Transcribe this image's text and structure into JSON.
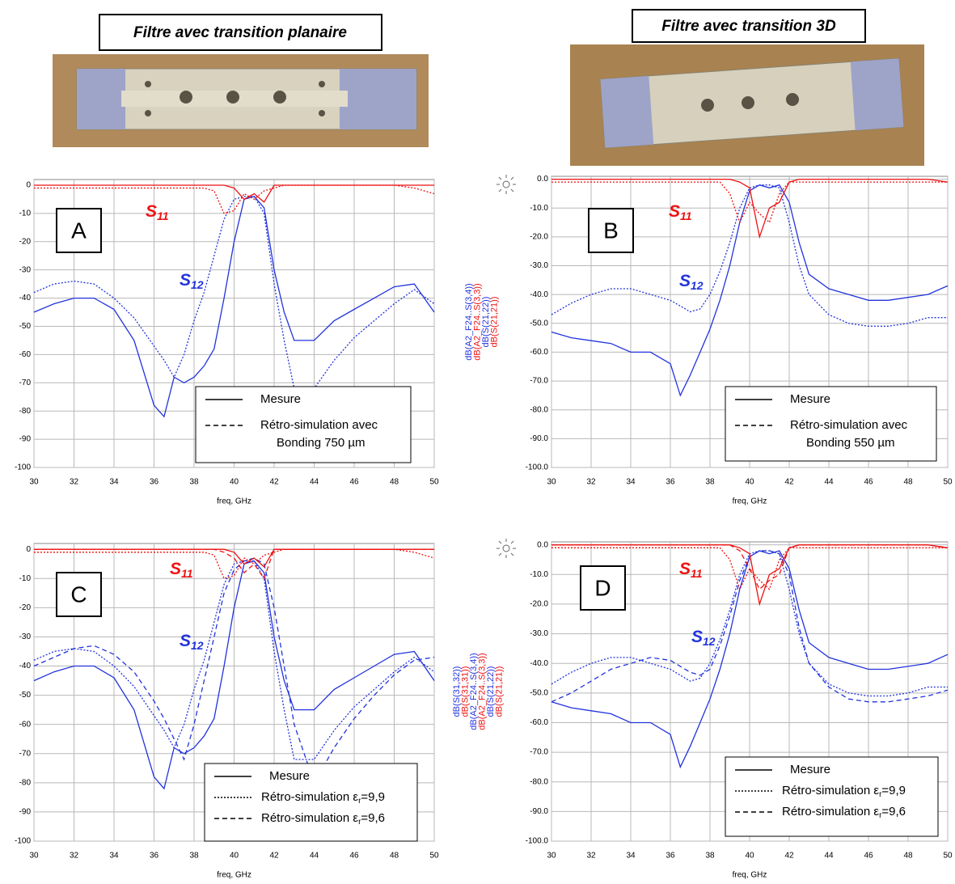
{
  "photos": [
    {
      "caption": "Filtre avec transition planaire"
    },
    {
      "caption": "Filtre avec transition 3D"
    }
  ],
  "chart_data": [
    {
      "type": "line",
      "panel_label": "A",
      "x_label": "freq, GHz",
      "x": [
        30,
        31,
        32,
        33,
        34,
        35,
        36,
        36.5,
        37,
        37.5,
        38,
        38.5,
        39,
        39.5,
        40,
        40.5,
        41,
        41.5,
        42,
        42.5,
        43,
        44,
        45,
        46,
        47,
        48,
        49,
        50
      ],
      "xlim": [
        30,
        50
      ],
      "xticks": [
        30,
        32,
        34,
        36,
        38,
        40,
        42,
        44,
        46,
        48,
        50
      ],
      "ylim": [
        -100,
        2
      ],
      "yticks": [
        0,
        -10,
        -20,
        -30,
        -40,
        -50,
        -60,
        -70,
        -80,
        -90,
        -100
      ],
      "grid": true,
      "annotations": [
        {
          "main": "S",
          "sub": "11",
          "color": "#ee1111"
        },
        {
          "main": "S",
          "sub": "12",
          "color": "#2233dd"
        }
      ],
      "series": [
        {
          "color": "#2233dd",
          "dash": "solid",
          "values": [
            -45,
            -42,
            -40,
            -40,
            -44,
            -55,
            -78,
            -82,
            -68,
            -70,
            -68,
            -64,
            -58,
            -40,
            -20,
            -5,
            -4,
            -8,
            -30,
            -45,
            -55,
            -55,
            -48,
            -44,
            -40,
            -36,
            -35,
            -45
          ]
        },
        {
          "color": "#2233dd",
          "dash": "dotted",
          "values": [
            -38,
            -35,
            -34,
            -35,
            -40,
            -47,
            -57,
            -62,
            -68,
            -60,
            -48,
            -38,
            -25,
            -12,
            -5,
            -4,
            -4,
            -10,
            -35,
            -55,
            -72,
            -72,
            -62,
            -54,
            -48,
            -42,
            -37,
            -42
          ]
        },
        {
          "color": "#ee1111",
          "dash": "solid",
          "values": [
            0,
            0,
            0,
            0,
            0,
            0,
            0,
            0,
            0,
            0,
            0,
            0,
            0,
            0,
            -1,
            -5,
            -3,
            -6,
            0,
            0,
            0,
            0,
            0,
            0,
            0,
            0,
            0,
            0
          ]
        },
        {
          "color": "#ee1111",
          "dash": "dotted",
          "values": [
            -1,
            -1,
            -1,
            -1,
            -1,
            -1,
            -1,
            -1,
            -1,
            -1,
            -1,
            -1,
            -2,
            -10,
            -9,
            -3,
            -5,
            -2,
            -1,
            0,
            0,
            0,
            0,
            0,
            0,
            0,
            -1,
            -3
          ]
        }
      ],
      "legend": [
        {
          "dash": "solid",
          "lines": [
            "Mesure"
          ]
        },
        {
          "dash": "dashed",
          "lines": [
            "Rétro-simulation avec",
            "Bonding 750 µm"
          ]
        }
      ]
    },
    {
      "type": "line",
      "panel_label": "B",
      "x_label": "freq, GHz",
      "x": [
        30,
        31,
        32,
        33,
        34,
        35,
        36,
        36.5,
        37,
        37.5,
        38,
        38.5,
        39,
        39.5,
        40,
        40.5,
        41,
        41.5,
        42,
        42.5,
        43,
        44,
        45,
        46,
        47,
        48,
        49,
        50
      ],
      "xlim": [
        30,
        50
      ],
      "xticks": [
        30,
        32,
        34,
        36,
        38,
        40,
        42,
        44,
        46,
        48,
        50
      ],
      "ylim": [
        -100,
        1
      ],
      "yticks": [
        {
          "value": 0,
          "label": "0.0"
        },
        {
          "value": -10,
          "label": "-10.0"
        },
        {
          "value": -20,
          "label": "-20.0"
        },
        {
          "value": -30,
          "label": "-30.0"
        },
        {
          "value": -40,
          "label": "-40.0"
        },
        {
          "value": -50,
          "label": "-50.0"
        },
        {
          "value": -60,
          "label": "-60.0"
        },
        {
          "value": -70,
          "label": "-70.0"
        },
        {
          "value": -80,
          "label": "-80.0"
        },
        {
          "value": -90,
          "label": "-90.0"
        },
        {
          "value": -100,
          "label": "-100.0"
        }
      ],
      "grid": true,
      "y_labels": [
        {
          "text": "dB(A2_F24..S(3,4))",
          "color": "#2233dd"
        },
        {
          "text": "dB(A2_F24..S(3,3))",
          "color": "#ee1111"
        },
        {
          "text": "dB(S(21,22))",
          "color": "#2233dd"
        },
        {
          "text": "dB(S(21,21))",
          "color": "#ee1111"
        }
      ],
      "annotations": [
        {
          "main": "S",
          "sub": "11",
          "color": "#ee1111"
        },
        {
          "main": "S",
          "sub": "12",
          "color": "#2233dd"
        }
      ],
      "series": [
        {
          "color": "#2233dd",
          "dash": "solid",
          "values": [
            -53,
            -55,
            -56,
            -57,
            -60,
            -60,
            -64,
            -75,
            -68,
            -60,
            -52,
            -42,
            -30,
            -15,
            -4,
            -2,
            -3,
            -2,
            -8,
            -22,
            -33,
            -38,
            -40,
            -42,
            -42,
            -41,
            -40,
            -37
          ]
        },
        {
          "color": "#2233dd",
          "dash": "dotted",
          "values": [
            -47,
            -43,
            -40,
            -38,
            -38,
            -40,
            -42,
            -44,
            -46,
            -45,
            -40,
            -32,
            -22,
            -10,
            -3,
            -2,
            -2,
            -3,
            -15,
            -30,
            -40,
            -47,
            -50,
            -51,
            -51,
            -50,
            -48,
            -48
          ]
        },
        {
          "color": "#ee1111",
          "dash": "solid",
          "values": [
            0,
            0,
            0,
            0,
            0,
            0,
            0,
            0,
            0,
            0,
            0,
            0,
            0,
            -1,
            -3,
            -20,
            -10,
            -8,
            -1,
            0,
            0,
            0,
            0,
            0,
            0,
            0,
            0,
            -1
          ]
        },
        {
          "color": "#ee1111",
          "dash": "dotted",
          "values": [
            -1,
            -1,
            -1,
            -1,
            -1,
            -1,
            -1,
            -1,
            -1,
            -1,
            -1,
            -1,
            -5,
            -15,
            -8,
            -12,
            -15,
            -5,
            -1,
            -1,
            -1,
            -1,
            -1,
            -1,
            -1,
            -1,
            -1,
            -1
          ]
        }
      ],
      "legend": [
        {
          "dash": "solid",
          "lines": [
            "Mesure"
          ]
        },
        {
          "dash": "dashed",
          "lines": [
            "Rétro-simulation avec",
            "Bonding 550 µm"
          ]
        }
      ]
    },
    {
      "type": "line",
      "panel_label": "C",
      "x_label": "freq, GHz",
      "x": [
        30,
        31,
        32,
        33,
        34,
        35,
        36,
        36.5,
        37,
        37.5,
        38,
        38.5,
        39,
        39.5,
        40,
        40.5,
        41,
        41.5,
        42,
        42.5,
        43,
        44,
        45,
        46,
        47,
        48,
        49,
        50
      ],
      "xlim": [
        30,
        50
      ],
      "xticks": [
        30,
        32,
        34,
        36,
        38,
        40,
        42,
        44,
        46,
        48,
        50
      ],
      "ylim": [
        -100,
        2
      ],
      "yticks": [
        0,
        -10,
        -20,
        -30,
        -40,
        -50,
        -60,
        -70,
        -80,
        -90,
        -100
      ],
      "grid": true,
      "annotations": [
        {
          "main": "S",
          "sub": "11",
          "color": "#ee1111"
        },
        {
          "main": "S",
          "sub": "12",
          "color": "#2233dd"
        }
      ],
      "series": [
        {
          "color": "#2233dd",
          "dash": "solid",
          "values": [
            -45,
            -42,
            -40,
            -40,
            -44,
            -55,
            -78,
            -82,
            -68,
            -70,
            -68,
            -64,
            -58,
            -40,
            -20,
            -5,
            -4,
            -8,
            -30,
            -45,
            -55,
            -55,
            -48,
            -44,
            -40,
            -36,
            -35,
            -45
          ]
        },
        {
          "color": "#2233dd",
          "dash": "dotted",
          "values": [
            -38,
            -35,
            -34,
            -35,
            -40,
            -47,
            -57,
            -62,
            -68,
            -60,
            -48,
            -38,
            -25,
            -12,
            -5,
            -4,
            -4,
            -10,
            -35,
            -55,
            -72,
            -72,
            -62,
            -54,
            -48,
            -42,
            -37,
            -42
          ]
        },
        {
          "color": "#2233dd",
          "dash": "dashed",
          "values": [
            -40,
            -37,
            -34,
            -33,
            -36,
            -42,
            -52,
            -58,
            -65,
            -72,
            -60,
            -45,
            -30,
            -15,
            -7,
            -4,
            -3,
            -5,
            -20,
            -40,
            -60,
            -80,
            -68,
            -58,
            -50,
            -43,
            -38,
            -37
          ]
        },
        {
          "color": "#ee1111",
          "dash": "solid",
          "values": [
            0,
            0,
            0,
            0,
            0,
            0,
            0,
            0,
            0,
            0,
            0,
            0,
            0,
            0,
            -1,
            -5,
            -3,
            -6,
            0,
            0,
            0,
            0,
            0,
            0,
            0,
            0,
            0,
            0
          ]
        },
        {
          "color": "#ee1111",
          "dash": "dotted",
          "values": [
            -1,
            -1,
            -1,
            -1,
            -1,
            -1,
            -1,
            -1,
            -1,
            -1,
            -1,
            -1,
            -2,
            -10,
            -9,
            -3,
            -5,
            -2,
            -1,
            0,
            0,
            0,
            0,
            0,
            0,
            0,
            -1,
            -3
          ]
        },
        {
          "color": "#ee1111",
          "dash": "dashed",
          "values": [
            0,
            0,
            0,
            0,
            0,
            0,
            0,
            0,
            0,
            0,
            0,
            0,
            0,
            -1,
            -3,
            -8,
            -5,
            -10,
            0,
            0,
            0,
            0,
            0,
            0,
            0,
            0,
            0,
            0
          ]
        }
      ],
      "legend": [
        {
          "dash": "solid",
          "lines": [
            "Mesure"
          ]
        },
        {
          "dash": "dotted",
          "text": "Rétro-simulation ε",
          "sub": "r",
          "after": "=9,9"
        },
        {
          "dash": "dashed",
          "text": "Rétro-simulation ε",
          "sub": "r",
          "after": "=9,6"
        }
      ]
    },
    {
      "type": "line",
      "panel_label": "D",
      "x_label": "freq, GHz",
      "x": [
        30,
        31,
        32,
        33,
        34,
        35,
        36,
        36.5,
        37,
        37.5,
        38,
        38.5,
        39,
        39.5,
        40,
        40.5,
        41,
        41.5,
        42,
        42.5,
        43,
        44,
        45,
        46,
        47,
        48,
        49,
        50
      ],
      "xlim": [
        30,
        50
      ],
      "xticks": [
        30,
        32,
        34,
        36,
        38,
        40,
        42,
        44,
        46,
        48,
        50
      ],
      "ylim": [
        -100,
        1
      ],
      "yticks": [
        {
          "value": 0,
          "label": "0.0"
        },
        {
          "value": -10,
          "label": "-10.0"
        },
        {
          "value": -20,
          "label": "-20.0"
        },
        {
          "value": -30,
          "label": "-30.0"
        },
        {
          "value": -40,
          "label": "-40.0"
        },
        {
          "value": -50,
          "label": "-50.0"
        },
        {
          "value": -60,
          "label": "-60.0"
        },
        {
          "value": -70,
          "label": "-70.0"
        },
        {
          "value": -80,
          "label": "-80.0"
        },
        {
          "value": -90,
          "label": "-90.0"
        },
        {
          "value": -100,
          "label": "-100.0"
        }
      ],
      "grid": true,
      "y_labels": [
        {
          "text": "dB(S(31,32))",
          "color": "#2233dd"
        },
        {
          "text": "dB(S(31,31))",
          "color": "#ee1111"
        },
        {
          "text": "dB(A2_F24..S(3,4))",
          "color": "#2233dd"
        },
        {
          "text": "dB(A2_F24..S(3,3))",
          "color": "#ee1111"
        },
        {
          "text": "dB(S(21,22))",
          "color": "#2233dd"
        },
        {
          "text": "dB(S(21,21))",
          "color": "#ee1111"
        }
      ],
      "annotations": [
        {
          "main": "S",
          "sub": "11",
          "color": "#ee1111"
        },
        {
          "main": "S",
          "sub": "12",
          "color": "#2233dd"
        }
      ],
      "series": [
        {
          "color": "#2233dd",
          "dash": "solid",
          "values": [
            -53,
            -55,
            -56,
            -57,
            -60,
            -60,
            -64,
            -75,
            -68,
            -60,
            -52,
            -42,
            -30,
            -15,
            -4,
            -2,
            -3,
            -2,
            -8,
            -22,
            -33,
            -38,
            -40,
            -42,
            -42,
            -41,
            -40,
            -37
          ]
        },
        {
          "color": "#2233dd",
          "dash": "dotted",
          "values": [
            -47,
            -43,
            -40,
            -38,
            -38,
            -40,
            -42,
            -44,
            -46,
            -45,
            -40,
            -32,
            -22,
            -10,
            -3,
            -2,
            -2,
            -3,
            -15,
            -30,
            -40,
            -47,
            -50,
            -51,
            -51,
            -50,
            -48,
            -48
          ]
        },
        {
          "color": "#2233dd",
          "dash": "dashed",
          "values": [
            -53,
            -50,
            -46,
            -42,
            -40,
            -38,
            -39,
            -41,
            -43,
            -44,
            -42,
            -34,
            -24,
            -12,
            -4,
            -2,
            -2,
            -3,
            -10,
            -28,
            -40,
            -48,
            -52,
            -53,
            -53,
            -52,
            -51,
            -49
          ]
        },
        {
          "color": "#ee1111",
          "dash": "solid",
          "values": [
            0,
            0,
            0,
            0,
            0,
            0,
            0,
            0,
            0,
            0,
            0,
            0,
            0,
            -1,
            -3,
            -20,
            -10,
            -8,
            -1,
            0,
            0,
            0,
            0,
            0,
            0,
            0,
            0,
            -1
          ]
        },
        {
          "color": "#ee1111",
          "dash": "dotted",
          "values": [
            -1,
            -1,
            -1,
            -1,
            -1,
            -1,
            -1,
            -1,
            -1,
            -1,
            -1,
            -1,
            -5,
            -15,
            -8,
            -12,
            -15,
            -5,
            -1,
            -1,
            -1,
            -1,
            -1,
            -1,
            -1,
            -1,
            -1,
            -1
          ]
        },
        {
          "color": "#ee1111",
          "dash": "dashed",
          "values": [
            0,
            0,
            0,
            0,
            0,
            0,
            0,
            0,
            0,
            0,
            0,
            0,
            0,
            -2,
            -8,
            -15,
            -12,
            -10,
            -1,
            0,
            0,
            0,
            0,
            0,
            0,
            0,
            0,
            -1
          ]
        }
      ],
      "legend": [
        {
          "dash": "solid",
          "lines": [
            "Mesure"
          ]
        },
        {
          "dash": "dotted",
          "text": "Rétro-simulation ε",
          "sub": "r",
          "after": "=9,9"
        },
        {
          "dash": "dashed",
          "text": "Rétro-simulation ε",
          "sub": "r",
          "after": "=9,6"
        }
      ]
    }
  ]
}
